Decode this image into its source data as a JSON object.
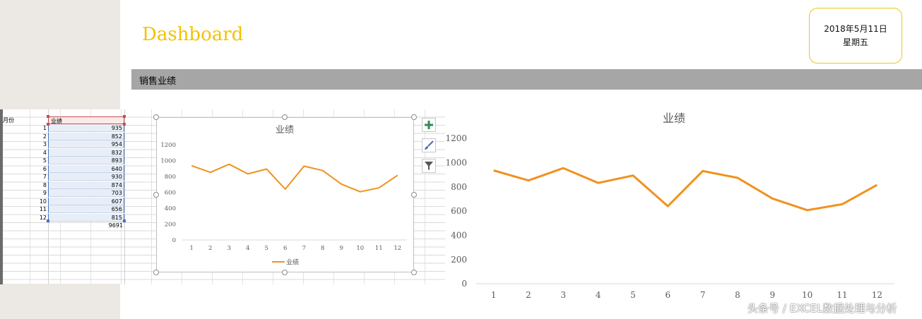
{
  "dashboard": {
    "title": "Dashboard",
    "date_line1": "2018年5月11日",
    "date_line2": "星期五",
    "section_title": "销售业绩"
  },
  "sheet": {
    "header_month": "月份",
    "header_value": "业绩",
    "rows": [
      {
        "month": "1",
        "value": "935"
      },
      {
        "month": "2",
        "value": "852"
      },
      {
        "month": "3",
        "value": "954"
      },
      {
        "month": "4",
        "value": "832"
      },
      {
        "month": "5",
        "value": "893"
      },
      {
        "month": "6",
        "value": "640"
      },
      {
        "month": "7",
        "value": "930"
      },
      {
        "month": "8",
        "value": "874"
      },
      {
        "month": "9",
        "value": "703"
      },
      {
        "month": "10",
        "value": "607"
      },
      {
        "month": "11",
        "value": "656"
      },
      {
        "month": "12",
        "value": "815"
      }
    ],
    "total": "9691"
  },
  "chart_tools": {
    "add_icon": "plus-icon",
    "style_icon": "brush-icon",
    "filter_icon": "filter-icon"
  },
  "watermark": "头条号 / EXCEL数据处理与分析",
  "colors": {
    "title": "#f2c200",
    "line": "#f0921e",
    "section_bar": "#a6a6a6",
    "date_border": "#f0c419"
  },
  "chart_data": [
    {
      "type": "line",
      "title": "业绩",
      "categories": [
        "1",
        "2",
        "3",
        "4",
        "5",
        "6",
        "7",
        "8",
        "9",
        "10",
        "11",
        "12"
      ],
      "series": [
        {
          "name": "业绩",
          "values": [
            935,
            852,
            954,
            832,
            893,
            640,
            930,
            874,
            703,
            607,
            656,
            815
          ]
        }
      ],
      "ylim": [
        0,
        1200
      ],
      "yticks": [
        0,
        200,
        400,
        600,
        800,
        1000,
        1200
      ],
      "grid": false,
      "legend": "bottom"
    },
    {
      "type": "line",
      "title": "业绩",
      "categories": [
        "1",
        "2",
        "3",
        "4",
        "5",
        "6",
        "7",
        "8",
        "9",
        "10",
        "11",
        "12"
      ],
      "series": [
        {
          "values": [
            935,
            852,
            954,
            832,
            893,
            640,
            930,
            874,
            703,
            607,
            656,
            815
          ]
        }
      ],
      "ylim": [
        0,
        1200
      ],
      "yticks": [
        0,
        200,
        400,
        600,
        800,
        1000,
        1200
      ],
      "grid": false,
      "legend": "none"
    }
  ]
}
